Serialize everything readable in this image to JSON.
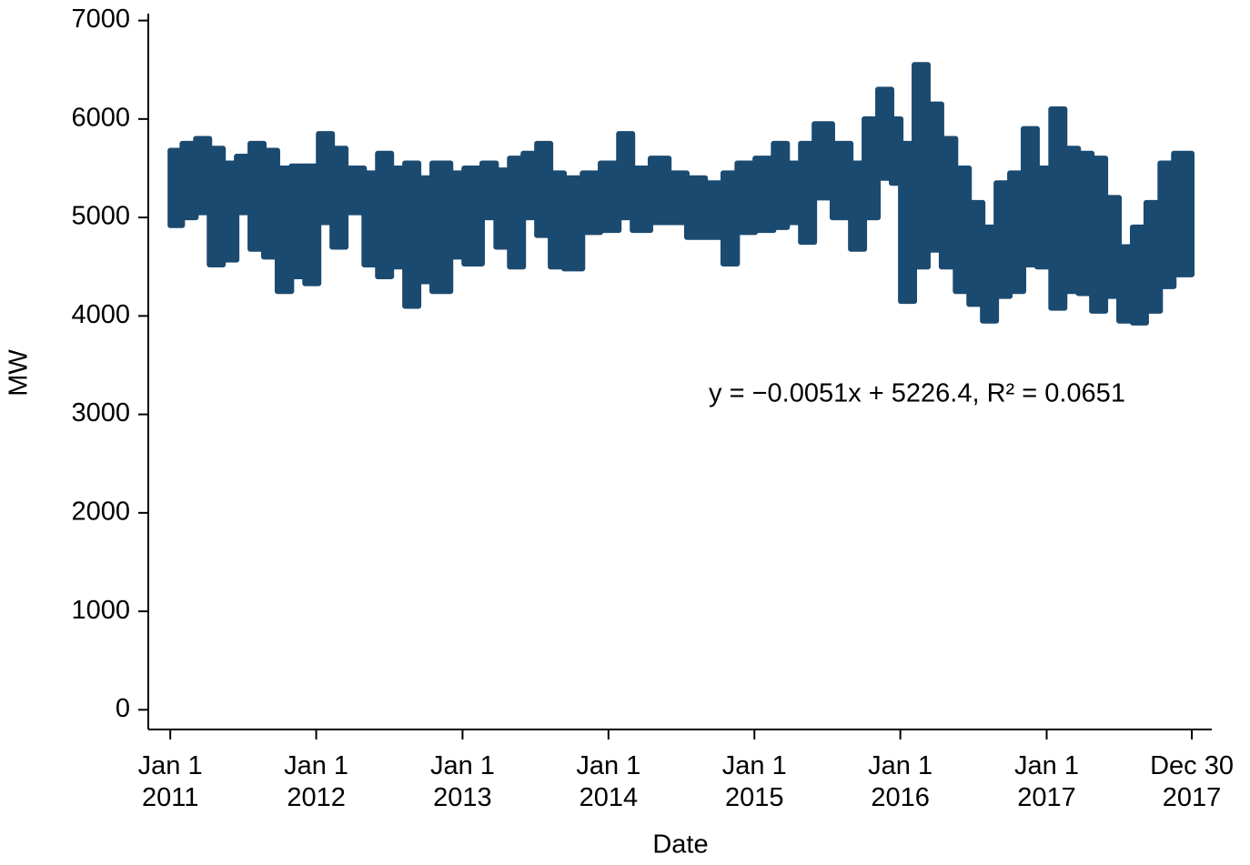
{
  "chart_data": {
    "type": "range_bar",
    "x_label": "Date",
    "y_label": "MW",
    "annotation": "y = −0.0051x + 5226.4, R² = 0.0651",
    "color": "#1b4a70",
    "bins": [
      0,
      30,
      64,
      98,
      132,
      166,
      200,
      234,
      268,
      303,
      337,
      371,
      405,
      439,
      485,
      519,
      553,
      587,
      621,
      655,
      701,
      735,
      780,
      815,
      849,
      883,
      917,
      951,
      985,
      1031,
      1076,
      1122,
      1156,
      1201,
      1247,
      1292,
      1338,
      1383,
      1418,
      1463,
      1509,
      1543,
      1577,
      1611,
      1656,
      1702,
      1736,
      1770,
      1804,
      1827,
      1861,
      1895,
      1929,
      1964,
      1998,
      2032,
      2066,
      2100,
      2134,
      2168,
      2203,
      2237,
      2271,
      2305,
      2339,
      2373,
      2407,
      2441,
      2476,
      2510,
      2555
    ],
    "high": [
      5680,
      5750,
      5800,
      5700,
      5550,
      5620,
      5750,
      5680,
      5500,
      5520,
      5520,
      5850,
      5700,
      5500,
      5450,
      5650,
      5500,
      5550,
      5400,
      5550,
      5450,
      5500,
      5550,
      5480,
      5600,
      5650,
      5750,
      5450,
      5400,
      5450,
      5550,
      5850,
      5500,
      5600,
      5450,
      5400,
      5350,
      5450,
      5550,
      5600,
      5750,
      5550,
      5750,
      5950,
      5750,
      5550,
      6000,
      6300,
      6000,
      5750,
      6550,
      6150,
      5800,
      5500,
      5150,
      4900,
      5350,
      5450,
      5900,
      5500,
      6100,
      5700,
      5650,
      5600,
      5200,
      4700,
      4900,
      5150,
      5550,
      5650
    ],
    "low": [
      4920,
      5000,
      5050,
      4520,
      4570,
      5050,
      4680,
      4600,
      4250,
      4400,
      4330,
      4950,
      4700,
      5050,
      4520,
      4400,
      4500,
      4100,
      4350,
      4250,
      4600,
      4530,
      5000,
      4700,
      4500,
      5000,
      4820,
      4500,
      4480,
      4850,
      4870,
      5000,
      4870,
      4950,
      4950,
      4800,
      4800,
      4530,
      4850,
      4870,
      4900,
      4950,
      4750,
      5200,
      5000,
      4680,
      5000,
      5400,
      5350,
      4150,
      4500,
      4670,
      4500,
      4250,
      4120,
      3950,
      4200,
      4250,
      4520,
      4500,
      4080,
      4250,
      4230,
      4050,
      4200,
      3950,
      3930,
      4050,
      4300,
      4420
    ],
    "xlim": [
      -55,
      2605
    ],
    "xticks": [
      {
        "value": 0,
        "label": "Jan 1\n2011"
      },
      {
        "value": 365,
        "label": "Jan 1\n2012"
      },
      {
        "value": 731,
        "label": "Jan 1\n2013"
      },
      {
        "value": 1096,
        "label": "Jan 1\n2014"
      },
      {
        "value": 1461,
        "label": "Jan 1\n2015"
      },
      {
        "value": 1826,
        "label": "Jan 1\n2016"
      },
      {
        "value": 2192,
        "label": "Jan 1\n2017"
      },
      {
        "value": 2555,
        "label": "Dec 30\n2017"
      }
    ],
    "ylim": [
      -200,
      7070
    ],
    "yticks": [
      0,
      1000,
      2000,
      3000,
      4000,
      5000,
      6000,
      7000
    ]
  }
}
